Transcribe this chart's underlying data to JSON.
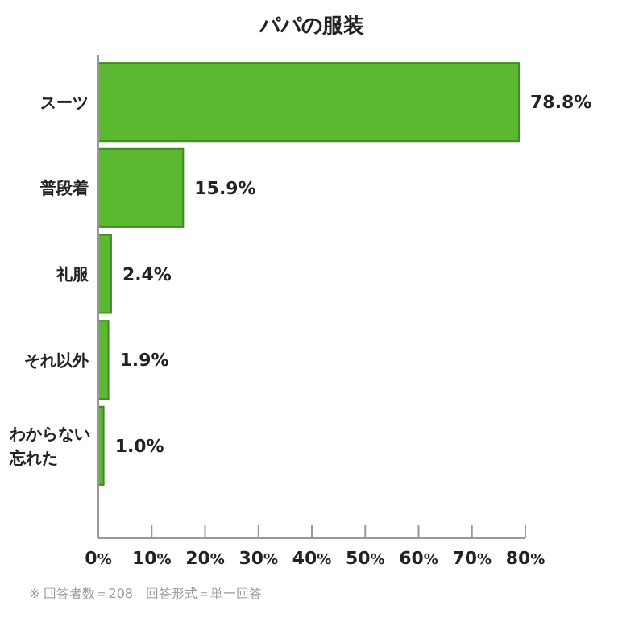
{
  "chart_data": {
    "type": "bar",
    "orientation": "horizontal",
    "title": "パパの服装",
    "categories": [
      "スーツ",
      "普段着",
      "礼服",
      "それ以外",
      "わからない忘れた"
    ],
    "values": [
      78.8,
      15.9,
      2.4,
      1.9,
      1.0
    ],
    "value_labels": [
      "78.8%",
      "15.9%",
      "2.4%",
      "1.9%",
      "1.0%"
    ],
    "color": "#5ab831",
    "xlim": [
      0,
      80
    ],
    "xticks": [
      {
        "value": 0,
        "label": "0%"
      },
      {
        "value": 10,
        "label": "10%"
      },
      {
        "value": 20,
        "label": "20%"
      },
      {
        "value": 30,
        "label": "30%"
      },
      {
        "value": 40,
        "label": "40%"
      },
      {
        "value": 50,
        "label": "50%"
      },
      {
        "value": 60,
        "label": "60%"
      },
      {
        "value": 70,
        "label": "70%"
      },
      {
        "value": 80,
        "label": "80%"
      }
    ],
    "grid": false,
    "annotations": [
      "※ 回答者数＝208　回答形式＝単一回答"
    ]
  }
}
